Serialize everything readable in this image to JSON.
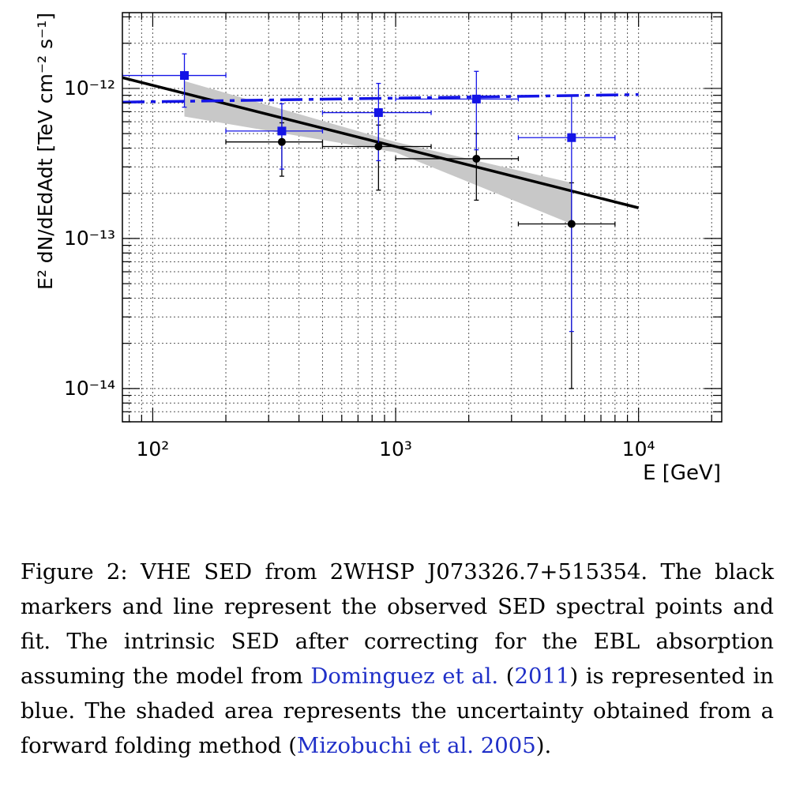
{
  "chart_data": {
    "type": "scatter",
    "xscale": "log",
    "yscale": "log",
    "xlim": [
      75,
      22000
    ],
    "ylim": [
      6e-15,
      3.2e-12
    ],
    "xlabel": "E  [GeV]",
    "ylabel": "E² dN/dEdAdt  [TeV cm⁻² s⁻¹]",
    "x_tick_labels": [
      {
        "value": 100,
        "label": "10²"
      },
      {
        "value": 1000,
        "label": "10³"
      },
      {
        "value": 10000,
        "label": "10⁴"
      }
    ],
    "y_tick_labels": [
      {
        "value": 1e-12,
        "label": "10⁻¹²"
      },
      {
        "value": 1e-13,
        "label": "10⁻¹³"
      },
      {
        "value": 1e-14,
        "label": "10⁻¹⁴"
      }
    ],
    "grid": true,
    "series": [
      {
        "name": "observed",
        "marker": "circle",
        "color": "#000000",
        "points": [
          {
            "x": 340,
            "y": 4.4e-13,
            "xlo": 200,
            "xhi": 500,
            "ylo": 2.6e-13,
            "yhi": 5.9e-13
          },
          {
            "x": 850,
            "y": 4.1e-13,
            "xlo": 500,
            "xhi": 1400,
            "ylo": 2.1e-13,
            "yhi": 5.7e-13
          },
          {
            "x": 2150,
            "y": 3.4e-13,
            "xlo": 1000,
            "xhi": 3200,
            "ylo": 1.8e-13,
            "yhi": 5e-13
          },
          {
            "x": 5300,
            "y": 1.25e-13,
            "xlo": 3200,
            "xhi": 8000,
            "ylo": 1e-14,
            "yhi": 2.35e-13
          }
        ]
      },
      {
        "name": "intrinsic",
        "marker": "square",
        "color": "#1414e6",
        "points": [
          {
            "x": 135,
            "y": 1.22e-12,
            "xlo": 75,
            "xhi": 200,
            "ylo": 7.5e-13,
            "yhi": 1.7e-12
          },
          {
            "x": 340,
            "y": 5.2e-13,
            "xlo": 200,
            "xhi": 500,
            "ylo": 2.9e-13,
            "yhi": 7.9e-13
          },
          {
            "x": 850,
            "y": 6.9e-13,
            "xlo": 500,
            "xhi": 1400,
            "ylo": 3.3e-13,
            "yhi": 1.08e-12
          },
          {
            "x": 2150,
            "y": 8.5e-13,
            "xlo": 1000,
            "xhi": 3200,
            "ylo": 3.9e-13,
            "yhi": 1.3e-12
          },
          {
            "x": 5300,
            "y": 4.7e-13,
            "xlo": 3200,
            "xhi": 8000,
            "ylo": 2.4e-14,
            "yhi": 9e-13
          }
        ]
      }
    ],
    "lines": [
      {
        "name": "observed-fit",
        "style": "solid",
        "color": "#000000",
        "points": [
          [
            75,
            1.18e-12
          ],
          [
            10000,
            1.6e-13
          ]
        ]
      },
      {
        "name": "intrinsic-fit",
        "style": "dashed",
        "color": "#1414e6",
        "points": [
          [
            75,
            8.1e-13
          ],
          [
            10000,
            9.1e-13
          ]
        ]
      }
    ],
    "band": {
      "color": "#c8c8c8",
      "upper": [
        [
          135,
          1.12e-12
        ],
        [
          1000,
          4.4e-13
        ],
        [
          5300,
          2.35e-13
        ]
      ],
      "lower": [
        [
          5300,
          1.25e-13
        ],
        [
          1000,
          3.75e-13
        ],
        [
          135,
          6.5e-13
        ]
      ]
    }
  },
  "caption": {
    "label": "Figure 2: ",
    "text_1": "VHE SED from 2WHSP J073326.7+515354. The black markers and line represent the observed SED spectral points and fit. The intrinsic SED after correcting for the EBL absorption assuming the model from ",
    "cite_1": "Dominguez et al.",
    "text_2": " (",
    "cite_1_year": "2011",
    "text_3": ") is represented in blue. The shaded area represents the uncertainty obtained from a forward folding method (",
    "cite_2": "Mizobuchi et al. 2005",
    "text_4": ")."
  }
}
